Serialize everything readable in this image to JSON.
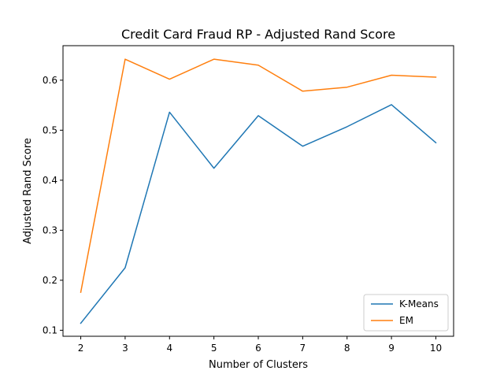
{
  "chart_data": {
    "type": "line",
    "title": "Credit Card Fraud RP - Adjusted Rand Score",
    "xlabel": "Number of Clusters",
    "ylabel": "Adjusted Rand Score",
    "x": [
      2,
      3,
      4,
      5,
      6,
      7,
      8,
      9,
      10
    ],
    "xlim": [
      1.6,
      10.4
    ],
    "ylim": [
      0.088,
      0.669
    ],
    "xticks": [
      2,
      3,
      4,
      5,
      6,
      7,
      8,
      9,
      10
    ],
    "yticks": [
      0.1,
      0.2,
      0.3,
      0.4,
      0.5,
      0.6
    ],
    "ytick_labels": [
      "0.1",
      "0.2",
      "0.3",
      "0.4",
      "0.5",
      "0.6"
    ],
    "grid": false,
    "legend_position": "lower-right",
    "series": [
      {
        "name": "K-Means",
        "color": "#1f77b4",
        "values": [
          0.114,
          0.225,
          0.536,
          0.424,
          0.529,
          0.468,
          0.507,
          0.551,
          0.475
        ]
      },
      {
        "name": "EM",
        "color": "#ff7f0e",
        "values": [
          0.176,
          0.642,
          0.602,
          0.642,
          0.63,
          0.578,
          0.586,
          0.61,
          0.606
        ]
      }
    ]
  }
}
